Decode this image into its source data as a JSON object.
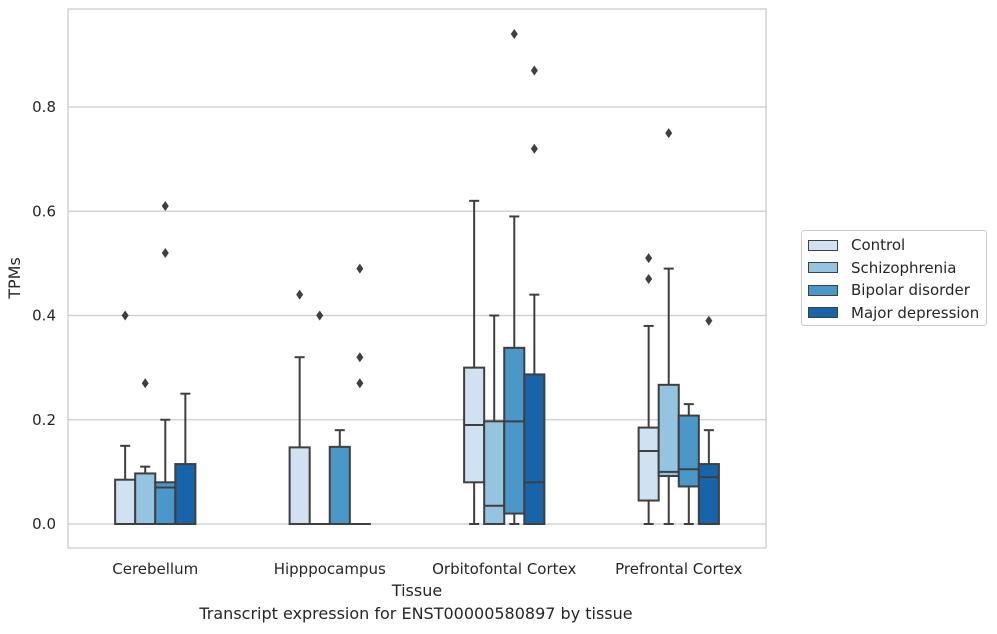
{
  "chart_data": {
    "type": "box",
    "title": "",
    "caption": "Transcript expression for ENST00000580897 by tissue",
    "xlabel": "Tissue",
    "ylabel": "TPMs",
    "ylim": [
      -0.045,
      0.98
    ],
    "yticks": [
      "0.0",
      "0.2",
      "0.4",
      "0.6",
      "0.8"
    ],
    "categories": [
      "Cerebellum",
      "Hipppocampus",
      "Orbitofontal Cortex",
      "Prefrontal Cortex"
    ],
    "legend_position": "right",
    "grid": "horizontal",
    "series": [
      {
        "name": "Control",
        "color": "#d0e1f2",
        "boxes": [
          {
            "min": 0,
            "q1": 0,
            "median": 0,
            "q3": 0.085,
            "max": 0.15,
            "outliers": [
              0.4
            ]
          },
          {
            "min": 0,
            "q1": 0,
            "median": 0,
            "q3": 0.147,
            "max": 0.32,
            "outliers": [
              0.44
            ]
          },
          {
            "min": 0,
            "q1": 0.08,
            "median": 0.19,
            "q3": 0.3,
            "max": 0.62,
            "outliers": []
          },
          {
            "min": 0,
            "q1": 0.045,
            "median": 0.14,
            "q3": 0.185,
            "max": 0.38,
            "outliers": [
              0.51,
              0.47
            ]
          }
        ]
      },
      {
        "name": "Schizophrenia",
        "color": "#94c4df",
        "boxes": [
          {
            "min": 0,
            "q1": 0,
            "median": 0,
            "q3": 0.097,
            "max": 0.11,
            "outliers": [
              0.27
            ]
          },
          {
            "min": 0,
            "q1": 0,
            "median": 0,
            "q3": 0,
            "max": 0,
            "outliers": [
              0.4
            ]
          },
          {
            "min": 0,
            "q1": 0,
            "median": 0.035,
            "q3": 0.197,
            "max": 0.4,
            "outliers": []
          },
          {
            "min": 0,
            "q1": 0.092,
            "median": 0.1,
            "q3": 0.267,
            "max": 0.49,
            "outliers": [
              0.75
            ]
          }
        ]
      },
      {
        "name": "Bipolar disorder",
        "color": "#4a98c9",
        "boxes": [
          {
            "min": 0,
            "q1": 0,
            "median": 0.07,
            "q3": 0.08,
            "max": 0.2,
            "outliers": [
              0.61,
              0.52
            ]
          },
          {
            "min": 0,
            "q1": 0,
            "median": 0,
            "q3": 0.148,
            "max": 0.18,
            "outliers": []
          },
          {
            "min": 0,
            "q1": 0.02,
            "median": 0.197,
            "q3": 0.338,
            "max": 0.59,
            "outliers": [
              0.94
            ]
          },
          {
            "min": 0,
            "q1": 0.072,
            "median": 0.105,
            "q3": 0.208,
            "max": 0.23,
            "outliers": []
          }
        ]
      },
      {
        "name": "Major depression",
        "color": "#1764ab",
        "boxes": [
          {
            "min": 0,
            "q1": 0,
            "median": 0,
            "q3": 0.115,
            "max": 0.25,
            "outliers": []
          },
          {
            "min": 0,
            "q1": 0,
            "median": 0,
            "q3": 0,
            "max": 0,
            "outliers": [
              0.49,
              0.32,
              0.27
            ]
          },
          {
            "min": 0,
            "q1": 0,
            "median": 0.08,
            "q3": 0.287,
            "max": 0.44,
            "outliers": [
              0.87,
              0.72
            ]
          },
          {
            "min": 0,
            "q1": 0,
            "median": 0.09,
            "q3": 0.115,
            "max": 0.18,
            "outliers": [
              0.39
            ]
          }
        ]
      }
    ]
  }
}
